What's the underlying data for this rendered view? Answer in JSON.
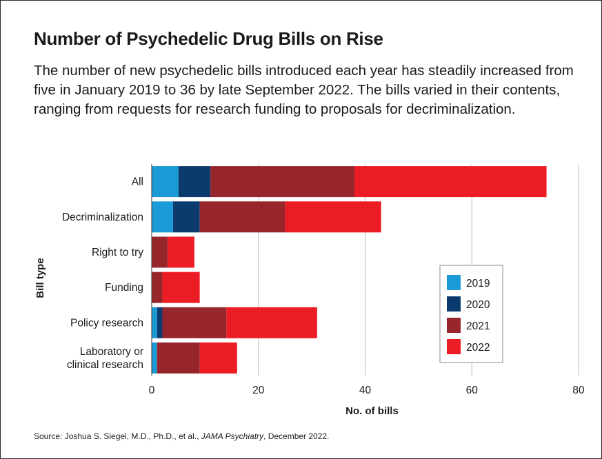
{
  "title": "Number of Psychedelic Drug Bills on Rise",
  "subtitle": "The number of new psychedelic bills introduced each year has steadily increased from five in January 2019 to 36 by late September 2022. The bills varied in their contents, ranging from requests for research funding to proposals for decriminalization.",
  "source": {
    "prefix": "Source: Joshua S. Siegel, M.D., Ph.D., et al., ",
    "journal": "JAMA Psychiatry",
    "suffix": ", December 2022."
  },
  "colors": {
    "2019": "#1a9ad6",
    "2020": "#0b3a6e",
    "2021": "#97262c",
    "2022": "#ec1c24"
  },
  "chart_data": {
    "type": "bar",
    "orientation": "horizontal",
    "stacked": true,
    "categories": [
      [
        "All"
      ],
      [
        "Decriminalization"
      ],
      [
        "Right to try"
      ],
      [
        "Funding"
      ],
      [
        "Policy research"
      ],
      [
        "Laboratory or",
        "clinical research"
      ]
    ],
    "series": [
      {
        "name": "2019",
        "values": [
          5,
          4,
          0,
          0,
          1,
          1
        ]
      },
      {
        "name": "2020",
        "values": [
          6,
          5,
          0,
          0,
          1,
          0
        ]
      },
      {
        "name": "2021",
        "values": [
          27,
          16,
          3,
          2,
          12,
          8
        ]
      },
      {
        "name": "2022",
        "values": [
          36,
          18,
          5,
          7,
          17,
          7
        ]
      }
    ],
    "xlabel": "No. of bills",
    "ylabel": "Bill type",
    "xlim": [
      0,
      80
    ],
    "xticks": [
      0,
      20,
      40,
      60,
      80
    ],
    "grid": "vertical",
    "legend_position": "right"
  }
}
